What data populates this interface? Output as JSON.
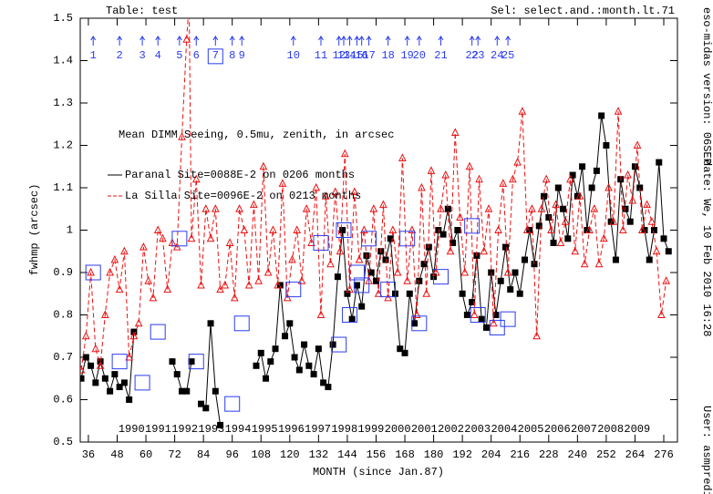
{
  "chart_data": {
    "type": "line",
    "header_left": "Table: test",
    "header_right": "Sel: select.and.:month.lt.71",
    "title": "Mean DIMM Seeing, 0.5mu, zenith, in arcsec",
    "xlabel": "MONTH (since Jan.87)",
    "ylabel": "fwhmp (arcsec)",
    "side_notes": [
      "eso-midas version: 06SEP",
      "date: We, 10 Feb 2010 16:28",
      "User: asmpredi"
    ],
    "xlim": [
      32.6,
      281.7
    ],
    "xticks": [
      36,
      48,
      60,
      72,
      84,
      96,
      108,
      120,
      132,
      144,
      156,
      168,
      180,
      192,
      204,
      216,
      228,
      240,
      252,
      264,
      276
    ],
    "ylim": [
      0.5,
      1.5
    ],
    "yticks": [
      0.5,
      0.6,
      0.7,
      0.8,
      0.9,
      1,
      1.1,
      1.2,
      1.3,
      1.4,
      1.5
    ],
    "grid": false,
    "series": [
      {
        "name": "Paranal Site=0088E-2 on 0206 months",
        "color": "#000000",
        "marker": "square",
        "dashed": false,
        "x": [
          33,
          35,
          37,
          39,
          41,
          43,
          45,
          47,
          49,
          51,
          53,
          55,
          56,
          71,
          73,
          75,
          77,
          79,
          80,
          83,
          85,
          87,
          89,
          91,
          92,
          106,
          108,
          110,
          112,
          114,
          116,
          118,
          120,
          122,
          124,
          126,
          128,
          130,
          132,
          134,
          136,
          138,
          140,
          142,
          144,
          146,
          148,
          150,
          152,
          154,
          156,
          158,
          160,
          162,
          164,
          166,
          168,
          170,
          172,
          174,
          176,
          178,
          180,
          182,
          184,
          186,
          188,
          190,
          192,
          194,
          196,
          198,
          200,
          202,
          204,
          206,
          208,
          210,
          212,
          214,
          216,
          218,
          220,
          222,
          224,
          226,
          228,
          230,
          232,
          234,
          236,
          238,
          240,
          242,
          244,
          246,
          248,
          250,
          252,
          254,
          256,
          258,
          260,
          262,
          264,
          266,
          268,
          270,
          272,
          274,
          276,
          278
        ],
        "values": [
          0.65,
          0.7,
          0.68,
          0.64,
          0.69,
          0.65,
          0.62,
          0.66,
          0.63,
          0.64,
          0.6,
          0.76,
          null,
          0.69,
          0.66,
          0.62,
          0.62,
          0.69,
          null,
          0.59,
          0.58,
          0.78,
          0.62,
          0.54,
          null,
          0.68,
          0.71,
          0.65,
          0.69,
          0.72,
          0.87,
          0.75,
          0.78,
          0.7,
          0.67,
          0.73,
          0.68,
          0.66,
          0.72,
          0.64,
          0.63,
          0.73,
          0.89,
          1.0,
          0.85,
          0.79,
          0.87,
          0.82,
          0.94,
          0.9,
          0.88,
          0.95,
          0.93,
          0.98,
          0.85,
          0.72,
          0.71,
          0.85,
          0.78,
          0.88,
          0.92,
          0.96,
          0.89,
          1.0,
          0.99,
          1.05,
          0.97,
          1.0,
          0.85,
          0.8,
          0.83,
          0.94,
          0.79,
          0.77,
          0.9,
          0.8,
          0.88,
          0.96,
          0.86,
          0.9,
          0.85,
          0.93,
          1.0,
          0.92,
          1.01,
          1.08,
          1.03,
          0.97,
          1.1,
          1.05,
          0.98,
          1.13,
          1.08,
          1.15,
          1.0,
          1.1,
          1.14,
          1.27,
          1.2,
          1.02,
          0.93,
          1.12,
          1.05,
          1.02,
          1.15,
          1.1,
          1.0,
          0.93,
          1.0,
          1.16,
          0.98,
          0.95
        ]
      },
      {
        "name": "La Silla Site=0096E-2 on 0213 months",
        "color": "#ee1111",
        "marker": "triangle",
        "dashed": true,
        "x": [
          33,
          35,
          37,
          39,
          41,
          43,
          45,
          47,
          49,
          51,
          53,
          55,
          57,
          59,
          61,
          63,
          65,
          67,
          69,
          71,
          73,
          75,
          77,
          78,
          79,
          81,
          83,
          85,
          87,
          89,
          91,
          93,
          95,
          97,
          99,
          101,
          103,
          105,
          107,
          109,
          111,
          113,
          115,
          117,
          119,
          121,
          123,
          125,
          127,
          129,
          131,
          133,
          135,
          137,
          139,
          141,
          143,
          145,
          147,
          149,
          151,
          153,
          155,
          157,
          159,
          161,
          163,
          165,
          167,
          169,
          171,
          173,
          175,
          177,
          179,
          181,
          183,
          185,
          187,
          189,
          191,
          193,
          195,
          197,
          199,
          201,
          203,
          205,
          207,
          209,
          211,
          213,
          215,
          217,
          219,
          221,
          223,
          225,
          227,
          229,
          231,
          233,
          235,
          237,
          239,
          241,
          243,
          245,
          247,
          249,
          251,
          253,
          255,
          257,
          259,
          261,
          263,
          265,
          267,
          269,
          271,
          273,
          275,
          277
        ],
        "values": [
          0.67,
          0.75,
          0.9,
          0.72,
          0.68,
          0.8,
          0.9,
          0.93,
          0.86,
          0.95,
          0.7,
          0.75,
          0.78,
          0.96,
          0.88,
          0.84,
          1.0,
          0.98,
          0.86,
          0.97,
          0.96,
          1.22,
          1.45,
          1.54,
          0.98,
          1.12,
          0.87,
          1.05,
          0.98,
          1.05,
          0.86,
          0.87,
          0.97,
          0.84,
          1.05,
          1.0,
          0.87,
          1.06,
          0.88,
          1.15,
          0.9,
          1.0,
          0.87,
          1.11,
          0.84,
          0.93,
          1.0,
          0.88,
          1.05,
          0.97,
          1.1,
          0.8,
          1.08,
          0.92,
          1.09,
          0.95,
          1.18,
          0.86,
          1.09,
          0.93,
          1.0,
          0.88,
          1.05,
          0.85,
          1.06,
          0.84,
          1.0,
          0.9,
          1.17,
          0.88,
          1.0,
          0.8,
          1.1,
          0.85,
          1.14,
          0.9,
          1.05,
          1.13,
          0.95,
          1.23,
          1.03,
          0.9,
          1.15,
          0.8,
          1.12,
          0.95,
          1.05,
          0.78,
          1.0,
          1.11,
          0.9,
          1.12,
          1.16,
          1.28,
          1.0,
          1.05,
          0.75,
          1.05,
          1.12,
          1.0,
          1.06,
          0.97,
          1.02,
          1.12,
          0.95,
          1.08,
          0.92,
          1.0,
          1.05,
          0.92,
          0.98,
          1.1,
          1.02,
          1.28,
          1.0,
          1.13,
          1.07,
          1.2,
          1.0,
          1.06,
          1.02,
          0.95,
          0.8,
          0.88
        ]
      }
    ],
    "event_color": "#2a3cf0",
    "events": [
      {
        "label": "1",
        "x": 38,
        "y": 0.9
      },
      {
        "label": "2",
        "x": 49,
        "y": 0.69
      },
      {
        "label": "3",
        "x": 58.5,
        "y": 0.64
      },
      {
        "label": "4",
        "x": 65,
        "y": 0.76
      },
      {
        "label": "5",
        "x": 74,
        "y": 0.98
      },
      {
        "label": "6",
        "x": 81,
        "y": 0.69
      },
      {
        "label": "7",
        "x": 89,
        "y": 1.41
      },
      {
        "label": "8",
        "x": 96,
        "y": 0.59
      },
      {
        "label": "9",
        "x": 100,
        "y": 0.78
      },
      {
        "label": "10",
        "x": 121.5,
        "y": 0.86
      },
      {
        "label": "11",
        "x": 133,
        "y": 0.97
      },
      {
        "label": "12",
        "x": 140.5,
        "y": 0.73
      },
      {
        "label": "13",
        "x": 142.5,
        "y": 1.0
      },
      {
        "label": "14",
        "x": 145,
        "y": 0.8
      },
      {
        "label": "15",
        "x": 148,
        "y": 0.9
      },
      {
        "label": "16",
        "x": 150,
        "y": 0.87
      },
      {
        "label": "17",
        "x": 153,
        "y": 0.98
      },
      {
        "label": "18",
        "x": 161,
        "y": 0.86
      },
      {
        "label": "19",
        "x": 169,
        "y": 0.98
      },
      {
        "label": "20",
        "x": 174,
        "y": 0.78
      },
      {
        "label": "21",
        "x": 183,
        "y": 0.89
      },
      {
        "label": "22",
        "x": 196,
        "y": 1.01
      },
      {
        "label": "23",
        "x": 198.5,
        "y": 0.8
      },
      {
        "label": "24",
        "x": 206.5,
        "y": 0.77
      },
      {
        "label": "25",
        "x": 211,
        "y": 0.79
      }
    ],
    "year_label_y": 0.53,
    "year_labels": [
      {
        "label": "1990",
        "x": 54
      },
      {
        "label": "1991",
        "x": 65.1
      },
      {
        "label": "1992",
        "x": 76.2
      },
      {
        "label": "1993",
        "x": 87.3
      },
      {
        "label": "1994",
        "x": 98.4
      },
      {
        "label": "1995",
        "x": 109.5
      },
      {
        "label": "1996",
        "x": 120.6
      },
      {
        "label": "1997",
        "x": 131.7
      },
      {
        "label": "1998",
        "x": 142.8
      },
      {
        "label": "1999",
        "x": 153.9
      },
      {
        "label": "2000",
        "x": 165
      },
      {
        "label": "2001",
        "x": 176.1
      },
      {
        "label": "2002",
        "x": 187.2
      },
      {
        "label": "2003",
        "x": 198.3
      },
      {
        "label": "2004",
        "x": 209.4
      },
      {
        "label": "2005",
        "x": 220.5
      },
      {
        "label": "2006",
        "x": 231.6
      },
      {
        "label": "2007",
        "x": 242.7
      },
      {
        "label": "2008",
        "x": 253.8
      },
      {
        "label": "2009",
        "x": 264.9
      }
    ]
  }
}
